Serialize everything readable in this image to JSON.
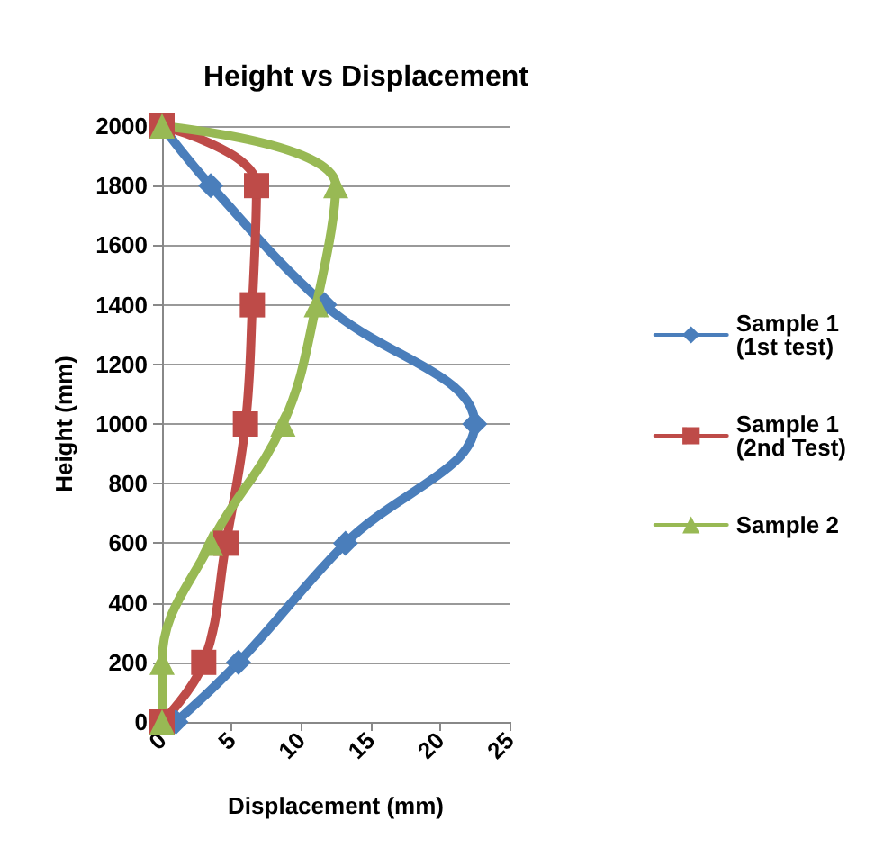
{
  "chart_data": {
    "type": "line",
    "title": "Height vs Displacement",
    "xlabel": "Displacement (mm)",
    "ylabel": "Height (mm)",
    "series": [
      {
        "name": "Sample 1\n(1st test)",
        "color": "#4a7ebb",
        "marker": "diamond",
        "x": [
          1,
          5.5,
          13.2,
          22.5,
          11.7,
          3.5,
          0
        ],
        "values": [
          0,
          200,
          600,
          1000,
          1400,
          1800,
          2000
        ]
      },
      {
        "name": "Sample 1\n(2nd Test)",
        "color": "#be4b48",
        "marker": "square",
        "x": [
          0,
          3,
          4.6,
          6,
          6.5,
          6.8,
          0
        ],
        "values": [
          0,
          200,
          600,
          1000,
          1400,
          1800,
          2000
        ]
      },
      {
        "name": "Sample 2",
        "color": "#98b954",
        "marker": "triangle",
        "x": [
          0,
          0,
          3.5,
          8.7,
          11.1,
          12.5,
          0
        ],
        "values": [
          0,
          200,
          600,
          1000,
          1400,
          1800,
          2000
        ]
      }
    ],
    "xlim": [
      0,
      25
    ],
    "xticks": [
      0,
      5,
      10,
      15,
      20,
      25
    ],
    "ylim": [
      0,
      2000
    ],
    "yticks": [
      0,
      200,
      400,
      600,
      800,
      1000,
      1200,
      1400,
      1600,
      1800,
      2000
    ],
    "grid": "y",
    "legend": "right",
    "line_style": "solid"
  }
}
